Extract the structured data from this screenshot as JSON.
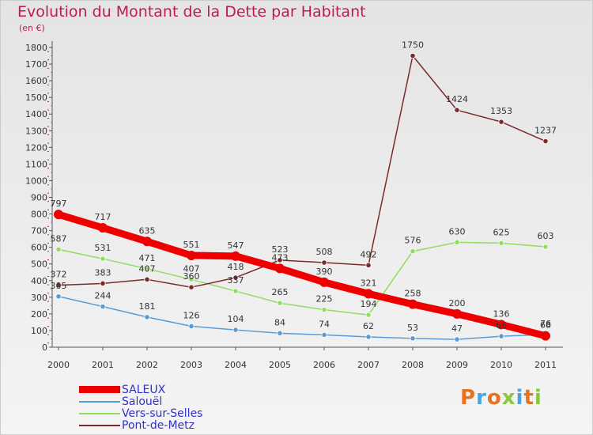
{
  "title": "Evolution du Montant de la Dette par Habitant",
  "subtitle": "(en €)",
  "logo": {
    "text": "Proxiti",
    "colors": [
      "#e8731f",
      "#4aa3df",
      "#e8731f",
      "#8cc63f",
      "#4aa3df",
      "#e8731f",
      "#8cc63f"
    ]
  },
  "chart_data": {
    "type": "line",
    "x": [
      "2000",
      "2001",
      "2002",
      "2003",
      "2004",
      "2005",
      "2006",
      "2007",
      "2008",
      "2009",
      "2010",
      "2011"
    ],
    "ylim": [
      0,
      1800
    ],
    "yticks": [
      "0",
      "100",
      "200",
      "300",
      "400",
      "500",
      "600",
      "700",
      "800",
      "900",
      "1000",
      "1100",
      "1200",
      "1300",
      "1400",
      "1500",
      "1600",
      "1700",
      "1800"
    ],
    "grid": false,
    "legend_position": "bottom-left",
    "series": [
      {
        "name": "SALEUX",
        "color": "#ee0000",
        "values": [
          797,
          717,
          635,
          551,
          547,
          473,
          390,
          321,
          258,
          200,
          136,
          68
        ]
      },
      {
        "name": "Salouël",
        "color": "#5b9bd5",
        "values": [
          305,
          244,
          181,
          126,
          104,
          84,
          74,
          62,
          53,
          47,
          66,
          76
        ]
      },
      {
        "name": "Vers-sur-Selles",
        "color": "#90dd60",
        "values": [
          587,
          531,
          471,
          407,
          337,
          265,
          225,
          194,
          576,
          630,
          625,
          603
        ]
      },
      {
        "name": "Pont-de-Metz",
        "color": "#7a2a2a",
        "values": [
          372,
          383,
          407,
          360,
          418,
          523,
          508,
          492,
          1750,
          1424,
          1353,
          1237
        ]
      }
    ],
    "data_labels": [
      [
        "797",
        "717",
        "635",
        "551",
        "547",
        "473",
        "390",
        "321",
        "258",
        "200",
        "136",
        "68"
      ],
      [
        "305",
        "244",
        "181",
        "126",
        "104",
        "84",
        "74",
        "62",
        "53",
        "47",
        "66",
        "76"
      ],
      [
        "587",
        "531",
        "471",
        "407",
        "337",
        "265",
        "225",
        "194",
        "576",
        "630",
        "625",
        "603"
      ],
      [
        "372",
        "383",
        "407",
        "360",
        "418",
        "523",
        "508",
        "492",
        "1750",
        "1424",
        "1353",
        "1237"
      ]
    ]
  }
}
